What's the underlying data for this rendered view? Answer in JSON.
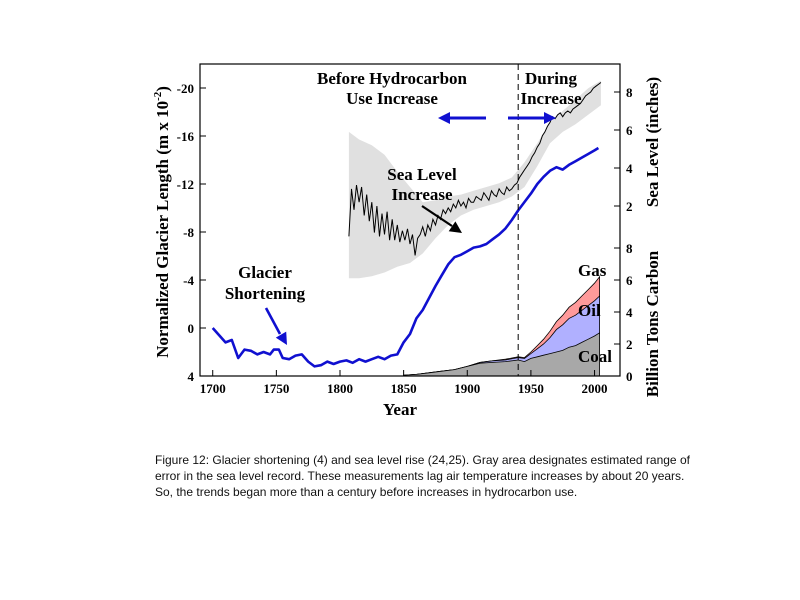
{
  "chart_data": {
    "type": "line",
    "xlabel": "Year",
    "left_axis": {
      "label": "Normalized Glacier Length (m x 10",
      "label_sup": "-2",
      "label_end": ")",
      "ylim": [
        4,
        -22
      ],
      "ticks": [
        "-20",
        "-16",
        "-12",
        "-8",
        "-4",
        "0",
        "4"
      ]
    },
    "right_axis_top": {
      "label": "Sea Level (inches)",
      "ticks": [
        "2",
        "4",
        "6",
        "8"
      ]
    },
    "right_axis_bottom": {
      "label": "Billion Tons Carbon",
      "ticks": [
        "0",
        "2",
        "4",
        "6",
        "8"
      ]
    },
    "x_ticks": [
      "1700",
      "1750",
      "1800",
      "1850",
      "1900",
      "1950",
      "2000"
    ],
    "annotations": {
      "before": [
        "Before Hydrocarbon",
        "Use Increase"
      ],
      "during": [
        "During",
        "Increase"
      ],
      "sea_level": [
        "Sea Level",
        "Increase"
      ],
      "glacier": [
        "Glacier",
        "Shortening"
      ]
    },
    "series": [
      {
        "name": "Glacier Shortening",
        "color": "#1010d0",
        "x": [
          1700,
          1710,
          1715,
          1720,
          1725,
          1730,
          1735,
          1740,
          1745,
          1748,
          1752,
          1755,
          1760,
          1765,
          1770,
          1775,
          1780,
          1785,
          1790,
          1795,
          1800,
          1805,
          1810,
          1815,
          1820,
          1825,
          1830,
          1835,
          1840,
          1845,
          1850,
          1855,
          1860,
          1865,
          1870,
          1875,
          1880,
          1885,
          1890,
          1895,
          1900,
          1905,
          1910,
          1915,
          1920,
          1925,
          1930,
          1935,
          1940,
          1945,
          1950,
          1955,
          1960,
          1965,
          1970,
          1975,
          1980,
          1985,
          1990,
          1995,
          2000,
          2003
        ],
        "y": [
          0.0,
          1.2,
          1.0,
          2.5,
          1.8,
          1.9,
          2.2,
          2.0,
          2.2,
          1.8,
          1.8,
          2.5,
          2.6,
          2.3,
          2.2,
          2.8,
          3.2,
          3.1,
          2.8,
          3.0,
          2.8,
          2.7,
          2.9,
          2.6,
          2.8,
          2.6,
          2.4,
          2.6,
          2.3,
          2.2,
          1.2,
          0.5,
          -0.8,
          -1.5,
          -2.5,
          -3.5,
          -4.4,
          -5.3,
          -5.9,
          -6.1,
          -6.4,
          -6.7,
          -6.8,
          -7.0,
          -7.4,
          -7.8,
          -8.3,
          -9.0,
          -9.8,
          -10.5,
          -11.2,
          -12.0,
          -12.6,
          -13.1,
          -13.4,
          -13.2,
          -13.6,
          -13.9,
          -14.2,
          -14.5,
          -14.8,
          -15.0
        ]
      },
      {
        "name": "Sea Level",
        "color": "#000000",
        "x": [
          1807,
          1809,
          1811,
          1813,
          1815,
          1817,
          1819,
          1821,
          1823,
          1825,
          1827,
          1829,
          1831,
          1833,
          1835,
          1837,
          1839,
          1841,
          1843,
          1845,
          1847,
          1849,
          1851,
          1853,
          1855,
          1857,
          1859,
          1861,
          1863,
          1865,
          1867,
          1869,
          1871,
          1873,
          1875,
          1877,
          1879,
          1881,
          1883,
          1885,
          1887,
          1889,
          1891,
          1893,
          1895,
          1897,
          1899,
          1901,
          1903,
          1905,
          1907,
          1909,
          1911,
          1913,
          1915,
          1917,
          1919,
          1921,
          1923,
          1925,
          1927,
          1929,
          1931,
          1933,
          1935,
          1937,
          1939,
          1941,
          1943,
          1945,
          1947,
          1949,
          1951,
          1953,
          1955,
          1957,
          1959,
          1961,
          1963,
          1965,
          1967,
          1969,
          1971,
          1973,
          1975,
          1977,
          1979,
          1981,
          1983,
          1985,
          1987,
          1989,
          1991,
          1993,
          1995,
          1997,
          1999,
          2001,
          2003,
          2005
        ],
        "y": [
          0.4,
          2.9,
          1.8,
          3.1,
          2.2,
          3.0,
          1.5,
          2.6,
          1.2,
          2.2,
          0.6,
          2.0,
          0.4,
          1.6,
          0.5,
          1.7,
          0.2,
          1.3,
          0.2,
          1.0,
          0.1,
          0.7,
          0.2,
          0.8,
          0.0,
          0.5,
          -0.6,
          0.3,
          0.5,
          0.9,
          0.4,
          1.0,
          0.7,
          1.3,
          1.0,
          1.5,
          1.3,
          1.8,
          1.6,
          1.9,
          1.7,
          2.1,
          1.9,
          2.3,
          2.0,
          2.2,
          1.9,
          2.4,
          2.2,
          2.2,
          2.5,
          2.4,
          2.3,
          2.7,
          2.5,
          2.3,
          2.8,
          2.6,
          2.5,
          2.9,
          2.7,
          2.6,
          3.0,
          2.8,
          2.9,
          3.1,
          3.2,
          3.5,
          3.7,
          3.9,
          4.1,
          4.3,
          4.6,
          4.8,
          5.1,
          5.3,
          5.7,
          5.9,
          6.2,
          6.4,
          6.7,
          6.6,
          6.8,
          6.9,
          6.7,
          6.9,
          7.0,
          6.9,
          7.1,
          7.2,
          7.3,
          7.4,
          7.6,
          7.8,
          7.9,
          8.0,
          8.2,
          8.3,
          8.4,
          8.5
        ]
      },
      {
        "name": "Sea Level Error Band",
        "color": "#e0e0e0",
        "x": [
          1807,
          1815,
          1825,
          1835,
          1845,
          1855,
          1865,
          1875,
          1885,
          1895,
          1905,
          1915,
          1925,
          1935,
          1945,
          1955,
          1965,
          1975,
          1985,
          1995,
          2005
        ],
        "upper": [
          5.9,
          5.5,
          5.2,
          4.7,
          3.8,
          3.0,
          2.2,
          2.3,
          2.5,
          2.6,
          2.8,
          3.0,
          3.2,
          3.5,
          4.3,
          5.3,
          6.4,
          7.0,
          7.6,
          8.2,
          8.6
        ],
        "lower": [
          -1.8,
          -1.8,
          -1.7,
          -1.5,
          -1.2,
          -1.0,
          -0.5,
          0.3,
          1.0,
          1.5,
          1.8,
          2.0,
          2.2,
          2.5,
          3.0,
          4.1,
          5.3,
          5.9,
          6.3,
          6.8,
          7.3
        ]
      },
      {
        "name": "Coal",
        "color": "#a8a8a8",
        "x": [
          1850,
          1860,
          1870,
          1880,
          1890,
          1900,
          1910,
          1920,
          1930,
          1940,
          1945,
          1950,
          1955,
          1960,
          1965,
          1970,
          1975,
          1980,
          1985,
          1990,
          1995,
          2000,
          2004
        ],
        "y": [
          0.05,
          0.1,
          0.2,
          0.3,
          0.4,
          0.6,
          0.8,
          0.85,
          0.9,
          1.0,
          0.9,
          1.1,
          1.2,
          1.3,
          1.4,
          1.5,
          1.6,
          1.8,
          1.9,
          2.1,
          2.3,
          2.5,
          2.7
        ]
      },
      {
        "name": "Oil",
        "color": "#b0b0ff",
        "x": [
          1850,
          1860,
          1870,
          1880,
          1890,
          1900,
          1910,
          1920,
          1930,
          1940,
          1945,
          1950,
          1955,
          1960,
          1965,
          1970,
          1975,
          1980,
          1985,
          1990,
          1995,
          2000,
          2004
        ],
        "y": [
          0.05,
          0.1,
          0.2,
          0.3,
          0.4,
          0.6,
          0.85,
          0.95,
          1.0,
          1.15,
          1.1,
          1.4,
          1.7,
          2.0,
          2.4,
          2.9,
          3.2,
          3.6,
          3.8,
          4.1,
          4.4,
          4.7,
          5.0
        ]
      },
      {
        "name": "Gas",
        "color": "#ff9a9a",
        "x": [
          1850,
          1860,
          1870,
          1880,
          1890,
          1900,
          1910,
          1920,
          1930,
          1940,
          1945,
          1950,
          1955,
          1960,
          1965,
          1970,
          1975,
          1980,
          1985,
          1990,
          1995,
          2000,
          2004
        ],
        "y": [
          0.05,
          0.1,
          0.2,
          0.3,
          0.4,
          0.6,
          0.85,
          0.95,
          1.05,
          1.2,
          1.15,
          1.5,
          1.9,
          2.3,
          2.8,
          3.4,
          3.8,
          4.3,
          4.6,
          5.0,
          5.4,
          5.8,
          6.2
        ]
      }
    ]
  },
  "caption": "Figure 12: Glacier shortening (4) and sea level rise (24,25). Gray area designates estimated range of error in the sea level record. These measurements lag air temperature increases by about 20 years. So, the trends began more than a century before increases in hydrocarbon use."
}
